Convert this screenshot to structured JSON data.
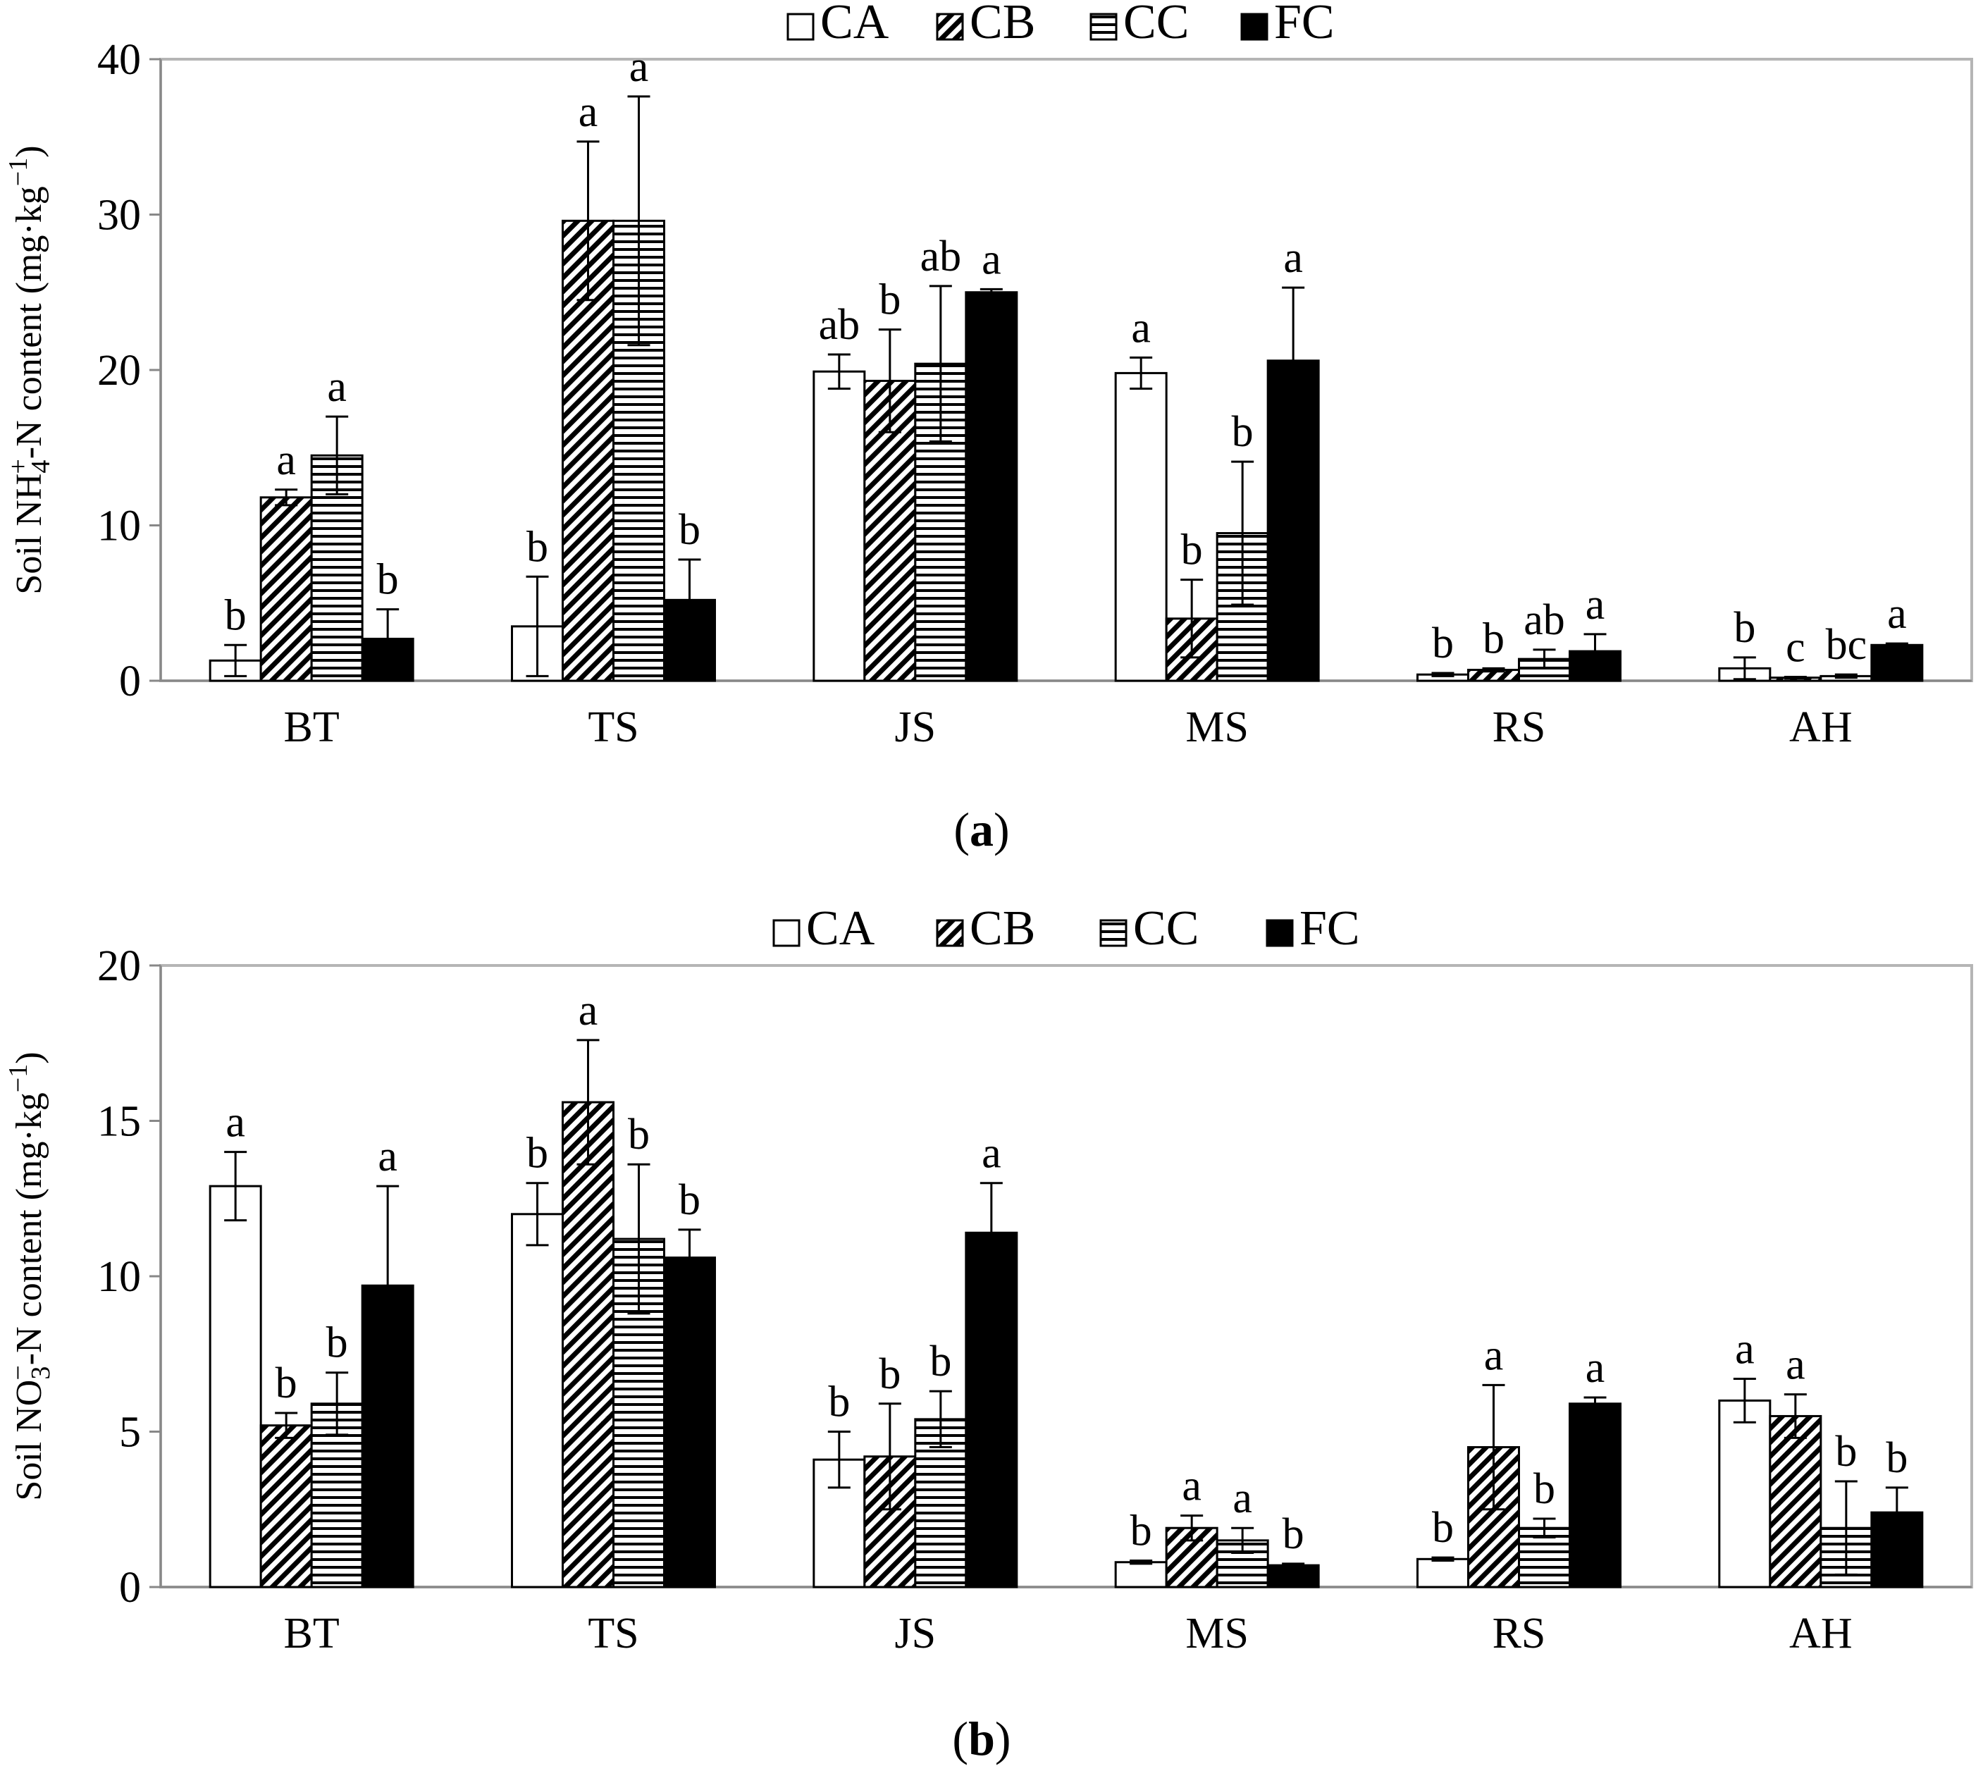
{
  "chart_data": [
    {
      "type": "bar",
      "panel_label": "a",
      "ylabel_main": "Soil NH",
      "ylabel_sub": "4",
      "ylabel_sup": "+",
      "ylabel_mid": "-N content (mg·kg",
      "ylabel_exp": "−1",
      "ylabel_end": ")",
      "ylim": [
        0,
        40
      ],
      "yticks": [
        0,
        10,
        20,
        30,
        40
      ],
      "categories": [
        "BT",
        "TS",
        "JS",
        "MS",
        "RS",
        "AH"
      ],
      "legend": [
        "CA",
        "CB",
        "CC",
        "FC"
      ],
      "series": [
        {
          "name": "CA",
          "values": [
            1.3,
            3.5,
            19.9,
            19.8,
            0.4,
            0.8
          ],
          "errors": [
            1.0,
            3.2,
            1.1,
            1.0,
            0.1,
            0.7
          ],
          "letters": [
            "b",
            "b",
            "ab",
            "a",
            "b",
            "b"
          ]
        },
        {
          "name": "CB",
          "values": [
            11.8,
            29.6,
            19.3,
            4.0,
            0.7,
            0.2
          ],
          "errors": [
            0.5,
            5.1,
            3.3,
            2.5,
            0.1,
            0.05
          ],
          "letters": [
            "a",
            "a",
            "b",
            "b",
            "b",
            "c"
          ]
        },
        {
          "name": "CC",
          "values": [
            14.5,
            29.6,
            20.4,
            9.5,
            1.4,
            0.3
          ],
          "errors": [
            2.5,
            8.0,
            5.0,
            4.6,
            0.6,
            0.1
          ],
          "letters": [
            "a",
            "a",
            "ab",
            "b",
            "ab",
            "bc"
          ]
        },
        {
          "name": "FC",
          "values": [
            2.7,
            5.2,
            25.0,
            20.6,
            1.9,
            2.3
          ],
          "errors": [
            1.9,
            2.6,
            0.2,
            4.7,
            1.1,
            0.1
          ],
          "letters": [
            "b",
            "b",
            "a",
            "a",
            "a",
            "a"
          ]
        }
      ]
    },
    {
      "type": "bar",
      "panel_label": "b",
      "ylabel_main": "Soil NO",
      "ylabel_sub": "3",
      "ylabel_sup": "−",
      "ylabel_mid": "-N content (mg·kg",
      "ylabel_exp": "−1",
      "ylabel_end": ")",
      "ylim": [
        0,
        20
      ],
      "yticks": [
        0,
        5,
        10,
        15,
        20
      ],
      "categories": [
        "BT",
        "TS",
        "JS",
        "MS",
        "RS",
        "AH"
      ],
      "legend": [
        "CA",
        "CB",
        "CC",
        "FC"
      ],
      "series": [
        {
          "name": "CA",
          "values": [
            12.9,
            12.0,
            4.1,
            0.8,
            0.9,
            6.0
          ],
          "errors": [
            1.1,
            1.0,
            0.9,
            0.05,
            0.05,
            0.7
          ],
          "letters": [
            "a",
            "b",
            "b",
            "b",
            "b",
            "a"
          ]
        },
        {
          "name": "CB",
          "values": [
            5.2,
            15.6,
            4.2,
            1.9,
            4.5,
            5.5
          ],
          "errors": [
            0.4,
            2.0,
            1.7,
            0.4,
            2.0,
            0.7
          ],
          "letters": [
            "b",
            "a",
            "b",
            "a",
            "a",
            "a"
          ]
        },
        {
          "name": "CC",
          "values": [
            5.9,
            11.2,
            5.4,
            1.5,
            1.9,
            1.9
          ],
          "errors": [
            1.0,
            2.4,
            0.9,
            0.4,
            0.3,
            1.5
          ],
          "letters": [
            "b",
            "b",
            "b",
            "a",
            "b",
            "b"
          ]
        },
        {
          "name": "FC",
          "values": [
            9.7,
            10.6,
            11.4,
            0.7,
            5.9,
            2.4
          ],
          "errors": [
            3.2,
            0.9,
            1.6,
            0.05,
            0.2,
            0.8
          ],
          "letters": [
            "a",
            "b",
            "a",
            "b",
            "a",
            "b"
          ]
        }
      ]
    }
  ]
}
